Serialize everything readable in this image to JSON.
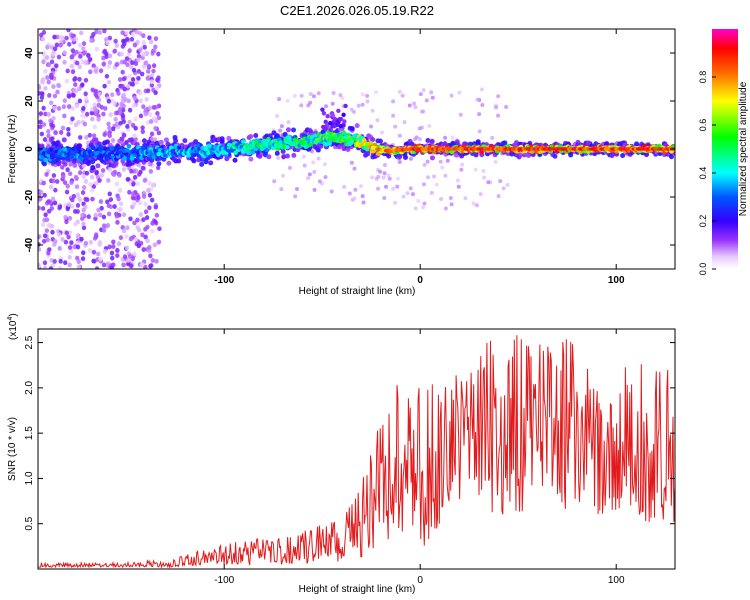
{
  "title": "C2E1.2026.026.05.19.R22",
  "chart_data": [
    {
      "type": "heatmap",
      "name": "spectrogram",
      "xlabel": "Height of straight line (km)",
      "ylabel": "Frequency (Hz)",
      "xlim": [
        -195,
        130
      ],
      "ylim": [
        -50,
        50
      ],
      "x_ticks": [
        -100,
        0,
        100
      ],
      "x_tick_labels": [
        "-100",
        "0",
        "100"
      ],
      "y_ticks": [
        -40,
        -20,
        0,
        20,
        40
      ],
      "y_tick_labels": [
        "-40",
        "-20",
        "0",
        "20",
        "40"
      ],
      "colorbar": {
        "label": "Normalized spectral amplitude",
        "range": [
          0,
          1
        ],
        "ticks": [
          0.0,
          0.2,
          0.4,
          0.6,
          0.8
        ],
        "tick_labels": [
          "0.0",
          "0.2",
          "0.4",
          "0.6",
          "0.8"
        ],
        "colors": [
          "#ffffff",
          "#cc66ff",
          "#6600ff",
          "#0000ff",
          "#00ffff",
          "#00ff00",
          "#ffff00",
          "#ff6600",
          "#ff0000",
          "#ff00cc"
        ]
      },
      "ridge": {
        "description": "dominant frequency ridge vs height",
        "x": [
          -195,
          -170,
          -150,
          -130,
          -110,
          -90,
          -75,
          -60,
          -50,
          -42,
          -35,
          -28,
          -22,
          -15,
          -5,
          0,
          20,
          50,
          80,
          110,
          130
        ],
        "freq": [
          -2,
          -2,
          -2,
          -1,
          -1,
          1,
          2,
          3,
          4,
          5,
          4,
          2,
          0,
          -1,
          0,
          0,
          0,
          0,
          0,
          0,
          0
        ],
        "amplitude": [
          0.35,
          0.35,
          0.35,
          0.4,
          0.45,
          0.5,
          0.55,
          0.55,
          0.6,
          0.6,
          0.65,
          0.75,
          0.8,
          0.85,
          0.9,
          0.9,
          0.92,
          0.92,
          0.92,
          0.92,
          0.92
        ]
      }
    },
    {
      "type": "line",
      "name": "snr",
      "xlabel": "Height of straight line (km)",
      "ylabel": "SNR (10 * v/v)",
      "y_multiplier_label": "(x10",
      "y_multiplier_exponent": "4",
      "xlim": [
        -195,
        130
      ],
      "ylim": [
        0,
        2.65
      ],
      "x_ticks": [
        -100,
        0,
        100
      ],
      "x_tick_labels": [
        "-100",
        "0",
        "100"
      ],
      "y_ticks": [
        0.5,
        1.0,
        1.5,
        2.0,
        2.5
      ],
      "y_tick_labels": [
        "0.5",
        "1.0",
        "1.5",
        "2.0",
        "2.5"
      ],
      "color": "#e31a1c",
      "envelope": {
        "x": [
          -195,
          -150,
          -125,
          -110,
          -90,
          -70,
          -50,
          -40,
          -33,
          -28,
          -20,
          -12,
          -5,
          0,
          10,
          20,
          30,
          40,
          55,
          70,
          80,
          90,
          100,
          110,
          120,
          130
        ],
        "max": [
          0.07,
          0.07,
          0.12,
          0.22,
          0.32,
          0.35,
          0.5,
          0.6,
          0.78,
          1.1,
          1.7,
          2.05,
          2.0,
          2.0,
          2.1,
          2.2,
          2.45,
          2.6,
          2.6,
          2.55,
          2.55,
          2.45,
          2.2,
          2.3,
          2.4,
          2.2
        ],
        "min": [
          0.02,
          0.02,
          0.02,
          0.03,
          0.04,
          0.05,
          0.06,
          0.08,
          0.1,
          0.15,
          0.2,
          0.35,
          0.45,
          0.2,
          0.4,
          0.6,
          0.6,
          0.6,
          0.6,
          0.6,
          0.6,
          0.6,
          0.6,
          0.55,
          0.5,
          0.5
        ]
      }
    }
  ]
}
